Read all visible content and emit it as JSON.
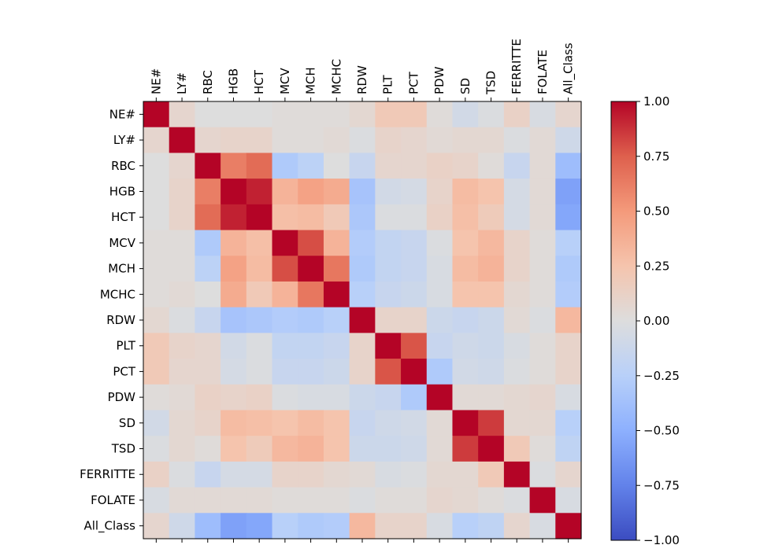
{
  "chart_data": {
    "type": "heatmap",
    "title": "",
    "colormap": "coolwarm",
    "vmin": -1.0,
    "vmax": 1.0,
    "labels": [
      "NE#",
      "LY#",
      "RBC",
      "HGB",
      "HCT",
      "MCV",
      "MCH",
      "MCHC",
      "RDW",
      "PLT",
      "PCT",
      "PDW",
      "SD",
      "TSD",
      "FERRITTE",
      "FOLATE",
      "All_Class"
    ],
    "matrix": [
      [
        1.0,
        0.08,
        0.0,
        0.0,
        0.0,
        0.02,
        0.02,
        0.02,
        0.06,
        0.2,
        0.2,
        0.02,
        -0.08,
        -0.02,
        0.12,
        -0.04,
        0.08
      ],
      [
        0.08,
        1.0,
        0.08,
        0.1,
        0.1,
        0.02,
        0.02,
        0.04,
        -0.02,
        0.1,
        0.08,
        0.04,
        0.06,
        0.06,
        -0.02,
        0.04,
        -0.1
      ],
      [
        0.0,
        0.08,
        1.0,
        0.62,
        0.7,
        -0.3,
        -0.22,
        0.0,
        -0.15,
        0.08,
        0.08,
        0.12,
        0.1,
        0.02,
        -0.15,
        0.04,
        -0.4
      ],
      [
        0.0,
        0.1,
        0.62,
        1.0,
        0.92,
        0.35,
        0.45,
        0.4,
        -0.35,
        -0.08,
        -0.06,
        0.1,
        0.3,
        0.25,
        -0.06,
        0.04,
        -0.58
      ],
      [
        0.0,
        0.1,
        0.7,
        0.92,
        1.0,
        0.28,
        0.3,
        0.2,
        -0.32,
        -0.02,
        -0.02,
        0.12,
        0.28,
        0.18,
        -0.06,
        0.04,
        -0.55
      ],
      [
        0.02,
        0.02,
        -0.3,
        0.35,
        0.28,
        1.0,
        0.8,
        0.35,
        -0.28,
        -0.18,
        -0.15,
        -0.02,
        0.25,
        0.32,
        0.1,
        0.02,
        -0.25
      ],
      [
        0.02,
        0.02,
        -0.22,
        0.45,
        0.3,
        0.8,
        1.0,
        0.65,
        -0.3,
        -0.18,
        -0.15,
        -0.04,
        0.3,
        0.35,
        0.1,
        0.02,
        -0.3
      ],
      [
        0.02,
        0.04,
        0.0,
        0.4,
        0.2,
        0.35,
        0.65,
        1.0,
        -0.25,
        -0.15,
        -0.12,
        -0.04,
        0.25,
        0.25,
        0.06,
        0.02,
        -0.28
      ],
      [
        0.06,
        -0.02,
        -0.15,
        -0.35,
        -0.32,
        -0.28,
        -0.3,
        -0.25,
        1.0,
        0.1,
        0.1,
        -0.12,
        -0.15,
        -0.12,
        0.04,
        -0.02,
        0.32
      ],
      [
        0.2,
        0.1,
        0.08,
        -0.08,
        -0.02,
        -0.18,
        -0.18,
        -0.15,
        0.1,
        1.0,
        0.78,
        -0.15,
        -0.1,
        -0.12,
        -0.04,
        0.02,
        0.1
      ],
      [
        0.2,
        0.08,
        0.08,
        -0.06,
        -0.02,
        -0.15,
        -0.15,
        -0.12,
        0.1,
        0.78,
        1.0,
        -0.3,
        -0.08,
        -0.1,
        -0.02,
        0.02,
        0.1
      ],
      [
        0.02,
        0.04,
        0.12,
        0.1,
        0.12,
        -0.02,
        -0.04,
        -0.04,
        -0.12,
        -0.15,
        -0.3,
        1.0,
        0.04,
        0.04,
        0.06,
        0.08,
        -0.04
      ],
      [
        -0.08,
        0.06,
        0.1,
        0.3,
        0.28,
        0.25,
        0.3,
        0.25,
        -0.15,
        -0.1,
        -0.08,
        0.04,
        1.0,
        0.85,
        0.06,
        0.06,
        -0.25
      ],
      [
        -0.02,
        0.06,
        0.02,
        0.25,
        0.18,
        0.32,
        0.35,
        0.25,
        -0.12,
        -0.12,
        -0.1,
        0.04,
        0.85,
        1.0,
        0.2,
        0.02,
        -0.2
      ],
      [
        0.12,
        -0.02,
        -0.15,
        -0.06,
        -0.06,
        0.1,
        0.1,
        0.06,
        0.04,
        -0.04,
        -0.02,
        0.06,
        0.06,
        0.2,
        1.0,
        -0.02,
        0.08
      ],
      [
        -0.04,
        0.04,
        0.04,
        0.04,
        0.04,
        0.02,
        0.02,
        0.02,
        -0.02,
        0.02,
        0.02,
        0.08,
        0.06,
        0.02,
        -0.02,
        1.0,
        -0.04
      ],
      [
        0.08,
        -0.1,
        -0.4,
        -0.58,
        -0.55,
        -0.25,
        -0.3,
        -0.28,
        0.32,
        0.1,
        0.1,
        -0.04,
        -0.25,
        -0.2,
        0.08,
        -0.04,
        1.0
      ]
    ],
    "colorbar": {
      "ticks": [
        1.0,
        0.75,
        0.5,
        0.25,
        0.0,
        -0.25,
        -0.5,
        -0.75,
        -1.0
      ],
      "tick_labels": [
        "1.00",
        "0.75",
        "0.50",
        "0.25",
        "0.00",
        "−0.25",
        "−0.50",
        "−0.75",
        "−1.00"
      ]
    },
    "x_tick_position": "top",
    "x_tick_rotation": "vertical"
  }
}
